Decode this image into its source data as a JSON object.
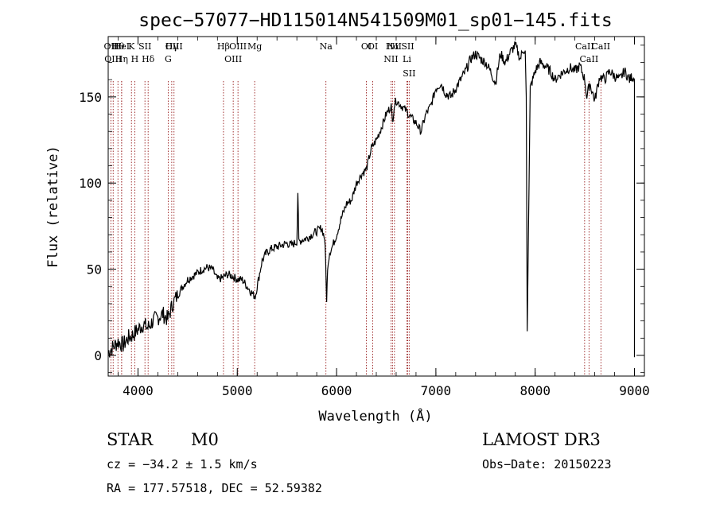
{
  "chart_data": {
    "type": "line",
    "title": "spec−57077−HD115014N541509M01_sp01−145.fits",
    "xlabel": "Wavelength (Å)",
    "ylabel": "Flux (relative)",
    "xlim": [
      3700,
      9100
    ],
    "ylim": [
      -12,
      185
    ],
    "x_ticks": [
      4000,
      5000,
      6000,
      7000,
      8000,
      9000
    ],
    "y_ticks": [
      0,
      50,
      100,
      150
    ],
    "series": [
      {
        "name": "spectrum",
        "x": [
          3700,
          3750,
          3800,
          3850,
          3900,
          3950,
          4000,
          4050,
          4100,
          4150,
          4200,
          4250,
          4300,
          4350,
          4400,
          4450,
          4500,
          4550,
          4600,
          4650,
          4700,
          4750,
          4800,
          4850,
          4900,
          4950,
          5000,
          5050,
          5100,
          5150,
          5180,
          5200,
          5250,
          5300,
          5350,
          5400,
          5450,
          5500,
          5550,
          5600,
          5610,
          5620,
          5650,
          5700,
          5750,
          5800,
          5850,
          5880,
          5890,
          5900,
          5910,
          5930,
          5950,
          6000,
          6050,
          6100,
          6150,
          6200,
          6250,
          6300,
          6350,
          6400,
          6450,
          6500,
          6550,
          6563,
          6580,
          6600,
          6650,
          6700,
          6750,
          6800,
          6850,
          6900,
          6950,
          7000,
          7050,
          7100,
          7150,
          7200,
          7250,
          7300,
          7350,
          7400,
          7450,
          7500,
          7550,
          7600,
          7650,
          7700,
          7750,
          7800,
          7850,
          7880,
          7900,
          7910,
          7920,
          7950,
          8000,
          8050,
          8100,
          8150,
          8200,
          8250,
          8300,
          8350,
          8400,
          8450,
          8500,
          8520,
          8550,
          8600,
          8650,
          8700,
          8750,
          8800,
          8850,
          8900,
          8950,
          8980,
          9000
        ],
        "y": [
          2,
          5,
          8,
          6,
          10,
          12,
          15,
          18,
          16,
          20,
          22,
          24,
          21,
          30,
          35,
          40,
          44,
          46,
          48,
          50,
          51,
          50,
          44,
          45,
          47,
          46,
          44,
          44,
          40,
          36,
          34,
          40,
          55,
          60,
          62,
          63,
          64,
          65,
          64,
          66,
          95,
          66,
          67,
          68,
          70,
          72,
          74,
          68,
          55,
          30,
          52,
          60,
          62,
          70,
          80,
          88,
          90,
          100,
          105,
          108,
          120,
          125,
          132,
          140,
          145,
          135,
          145,
          148,
          145,
          142,
          138,
          135,
          130,
          140,
          145,
          155,
          158,
          152,
          150,
          155,
          160,
          165,
          172,
          175,
          172,
          170,
          165,
          158,
          175,
          170,
          176,
          180,
          172,
          178,
          176,
          150,
          14,
          155,
          165,
          170,
          168,
          165,
          160,
          163,
          165,
          167,
          165,
          168,
          160,
          150,
          158,
          148,
          162,
          160,
          165,
          162,
          160,
          165,
          160,
          162,
          160
        ]
      }
    ],
    "line_markers": [
      {
        "label": "Hθ",
        "wl": 3798
      },
      {
        "label": "OII",
        "wl": 3727
      },
      {
        "label": "OIII",
        "wl": 3750
      },
      {
        "label": "HeI",
        "wl": 3835
      },
      {
        "label": "Hη",
        "wl": 3835
      },
      {
        "label": "K",
        "wl": 3934
      },
      {
        "label": "H",
        "wl": 3968
      },
      {
        "label": "SII",
        "wl": 4070
      },
      {
        "label": "Hδ",
        "wl": 4102
      },
      {
        "label": "OIII",
        "wl": 4363
      },
      {
        "label": "Hγ",
        "wl": 4340
      },
      {
        "label": "G",
        "wl": 4304
      },
      {
        "label": "OIII",
        "wl": 5007
      },
      {
        "label": "OIII",
        "wl": 4959
      },
      {
        "label": "Hβ",
        "wl": 4861
      },
      {
        "label": "Mg",
        "wl": 5175
      },
      {
        "label": "Na",
        "wl": 5893
      },
      {
        "label": "OI",
        "wl": 6300
      },
      {
        "label": "OI",
        "wl": 6364
      },
      {
        "label": "Hα",
        "wl": 6563
      },
      {
        "label": "NII",
        "wl": 6548
      },
      {
        "label": "NII",
        "wl": 6583
      },
      {
        "label": "SII",
        "wl": 6716
      },
      {
        "label": "Li",
        "wl": 6708
      },
      {
        "label": "SII",
        "wl": 6731
      },
      {
        "label": "CaII",
        "wl": 8498
      },
      {
        "label": "CaII",
        "wl": 8542
      },
      {
        "label": "CaII",
        "wl": 8662
      }
    ]
  },
  "info": {
    "object_type": "STAR",
    "subclass": "M0",
    "survey": "LAMOST DR3",
    "cz": "cz = −34.2 ± 1.5 km/s",
    "obs_date": "Obs−Date: 20150223",
    "coords": "RA = 177.57518, DEC =  52.59382"
  },
  "colors": {
    "spectrum": "#000000",
    "marker_line": "#8b0000",
    "axes": "#000000"
  }
}
